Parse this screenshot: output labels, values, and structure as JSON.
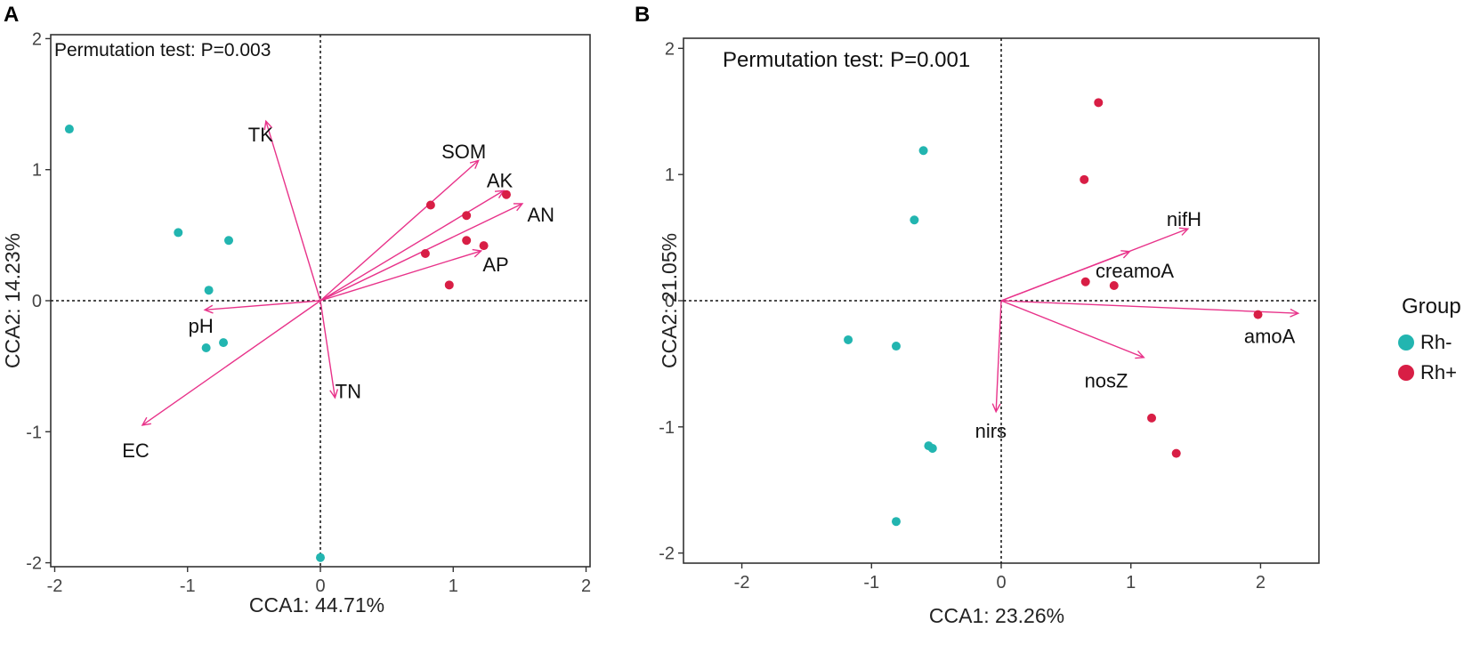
{
  "legend": {
    "title": "Group",
    "items": [
      {
        "label": "Rh-",
        "color": "#22b5b0"
      },
      {
        "label": "Rh+",
        "color": "#d81e45"
      }
    ]
  },
  "colors": {
    "arrow": "#e8338a",
    "rh_minus": "#22b5b0",
    "rh_plus": "#d81e45"
  },
  "chart_data": [
    {
      "panel": "A",
      "type": "scatter",
      "title": "",
      "annotation": "Permutation test: P=0.003",
      "xlabel": "CCA1: 44.71%",
      "ylabel": "CCA2: 14.23%",
      "xlim": [
        -2.03,
        2.03
      ],
      "ylim": [
        -2.03,
        2.03
      ],
      "xticks": [
        -2,
        -1,
        0,
        1,
        2
      ],
      "yticks": [
        -2,
        -1,
        0,
        1,
        2
      ],
      "grid": false,
      "legend_position": "right",
      "series": [
        {
          "name": "Rh-",
          "points": [
            [
              -1.89,
              1.31
            ],
            [
              -1.07,
              0.52
            ],
            [
              -0.69,
              0.46
            ],
            [
              -0.84,
              0.08
            ],
            [
              -0.86,
              -0.36
            ],
            [
              -0.73,
              -0.32
            ],
            [
              0.0,
              -1.96
            ]
          ]
        },
        {
          "name": "Rh+",
          "points": [
            [
              0.83,
              0.73
            ],
            [
              1.1,
              0.65
            ],
            [
              1.4,
              0.81
            ],
            [
              1.1,
              0.46
            ],
            [
              1.23,
              0.42
            ],
            [
              0.79,
              0.36
            ],
            [
              0.97,
              0.12
            ]
          ]
        }
      ],
      "vectors": [
        {
          "label": "TK",
          "x": -0.41,
          "y": 1.37,
          "lx": -0.45,
          "ly": 1.27
        },
        {
          "label": "SOM",
          "x": 1.19,
          "y": 1.07,
          "lx": 1.08,
          "ly": 1.14
        },
        {
          "label": "AK",
          "x": 1.38,
          "y": 0.84,
          "lx": 1.35,
          "ly": 0.92
        },
        {
          "label": "AN",
          "x": 1.52,
          "y": 0.74,
          "lx": 1.66,
          "ly": 0.66
        },
        {
          "label": "AP",
          "x": 1.21,
          "y": 0.38,
          "lx": 1.32,
          "ly": 0.28
        },
        {
          "label": "pH",
          "x": -0.87,
          "y": -0.07,
          "lx": -0.9,
          "ly": -0.19
        },
        {
          "label": "TN",
          "x": 0.11,
          "y": -0.74,
          "lx": 0.21,
          "ly": -0.69
        },
        {
          "label": "EC",
          "x": -1.34,
          "y": -0.95,
          "lx": -1.39,
          "ly": -1.14
        }
      ]
    },
    {
      "panel": "B",
      "type": "scatter",
      "title": "",
      "annotation": "Permutation test: P=0.001",
      "xlabel": "CCA1: 23.26%",
      "ylabel": "CCA2: 21.05%",
      "xlim": [
        -2.45,
        2.45
      ],
      "ylim": [
        -2.08,
        2.08
      ],
      "xticks": [
        -2,
        -1,
        0,
        1,
        2
      ],
      "yticks": [
        -2,
        -1,
        0,
        1,
        2
      ],
      "grid": false,
      "legend_position": "right",
      "series": [
        {
          "name": "Rh-",
          "points": [
            [
              -0.6,
              1.19
            ],
            [
              -0.67,
              0.64
            ],
            [
              -1.18,
              -0.31
            ],
            [
              -0.81,
              -0.36
            ],
            [
              -0.56,
              -1.15
            ],
            [
              -0.53,
              -1.17
            ],
            [
              -0.81,
              -1.75
            ]
          ]
        },
        {
          "name": "Rh+",
          "points": [
            [
              0.75,
              1.57
            ],
            [
              0.64,
              0.96
            ],
            [
              0.65,
              0.15
            ],
            [
              0.87,
              0.12
            ],
            [
              1.98,
              -0.11
            ],
            [
              1.16,
              -0.93
            ],
            [
              1.35,
              -1.21
            ]
          ]
        }
      ],
      "vectors": [
        {
          "label": "nifH",
          "x": 1.44,
          "y": 0.57,
          "lx": 1.41,
          "ly": 0.65
        },
        {
          "label": "creamoA",
          "x": 0.99,
          "y": 0.39,
          "lx": 1.03,
          "ly": 0.24
        },
        {
          "label": "amoA",
          "x": 2.29,
          "y": -0.1,
          "lx": 2.07,
          "ly": -0.28
        },
        {
          "label": "nosZ",
          "x": 1.1,
          "y": -0.45,
          "lx": 0.81,
          "ly": -0.63
        },
        {
          "label": "nirs",
          "x": -0.04,
          "y": -0.88,
          "lx": -0.08,
          "ly": -1.03
        }
      ]
    }
  ]
}
